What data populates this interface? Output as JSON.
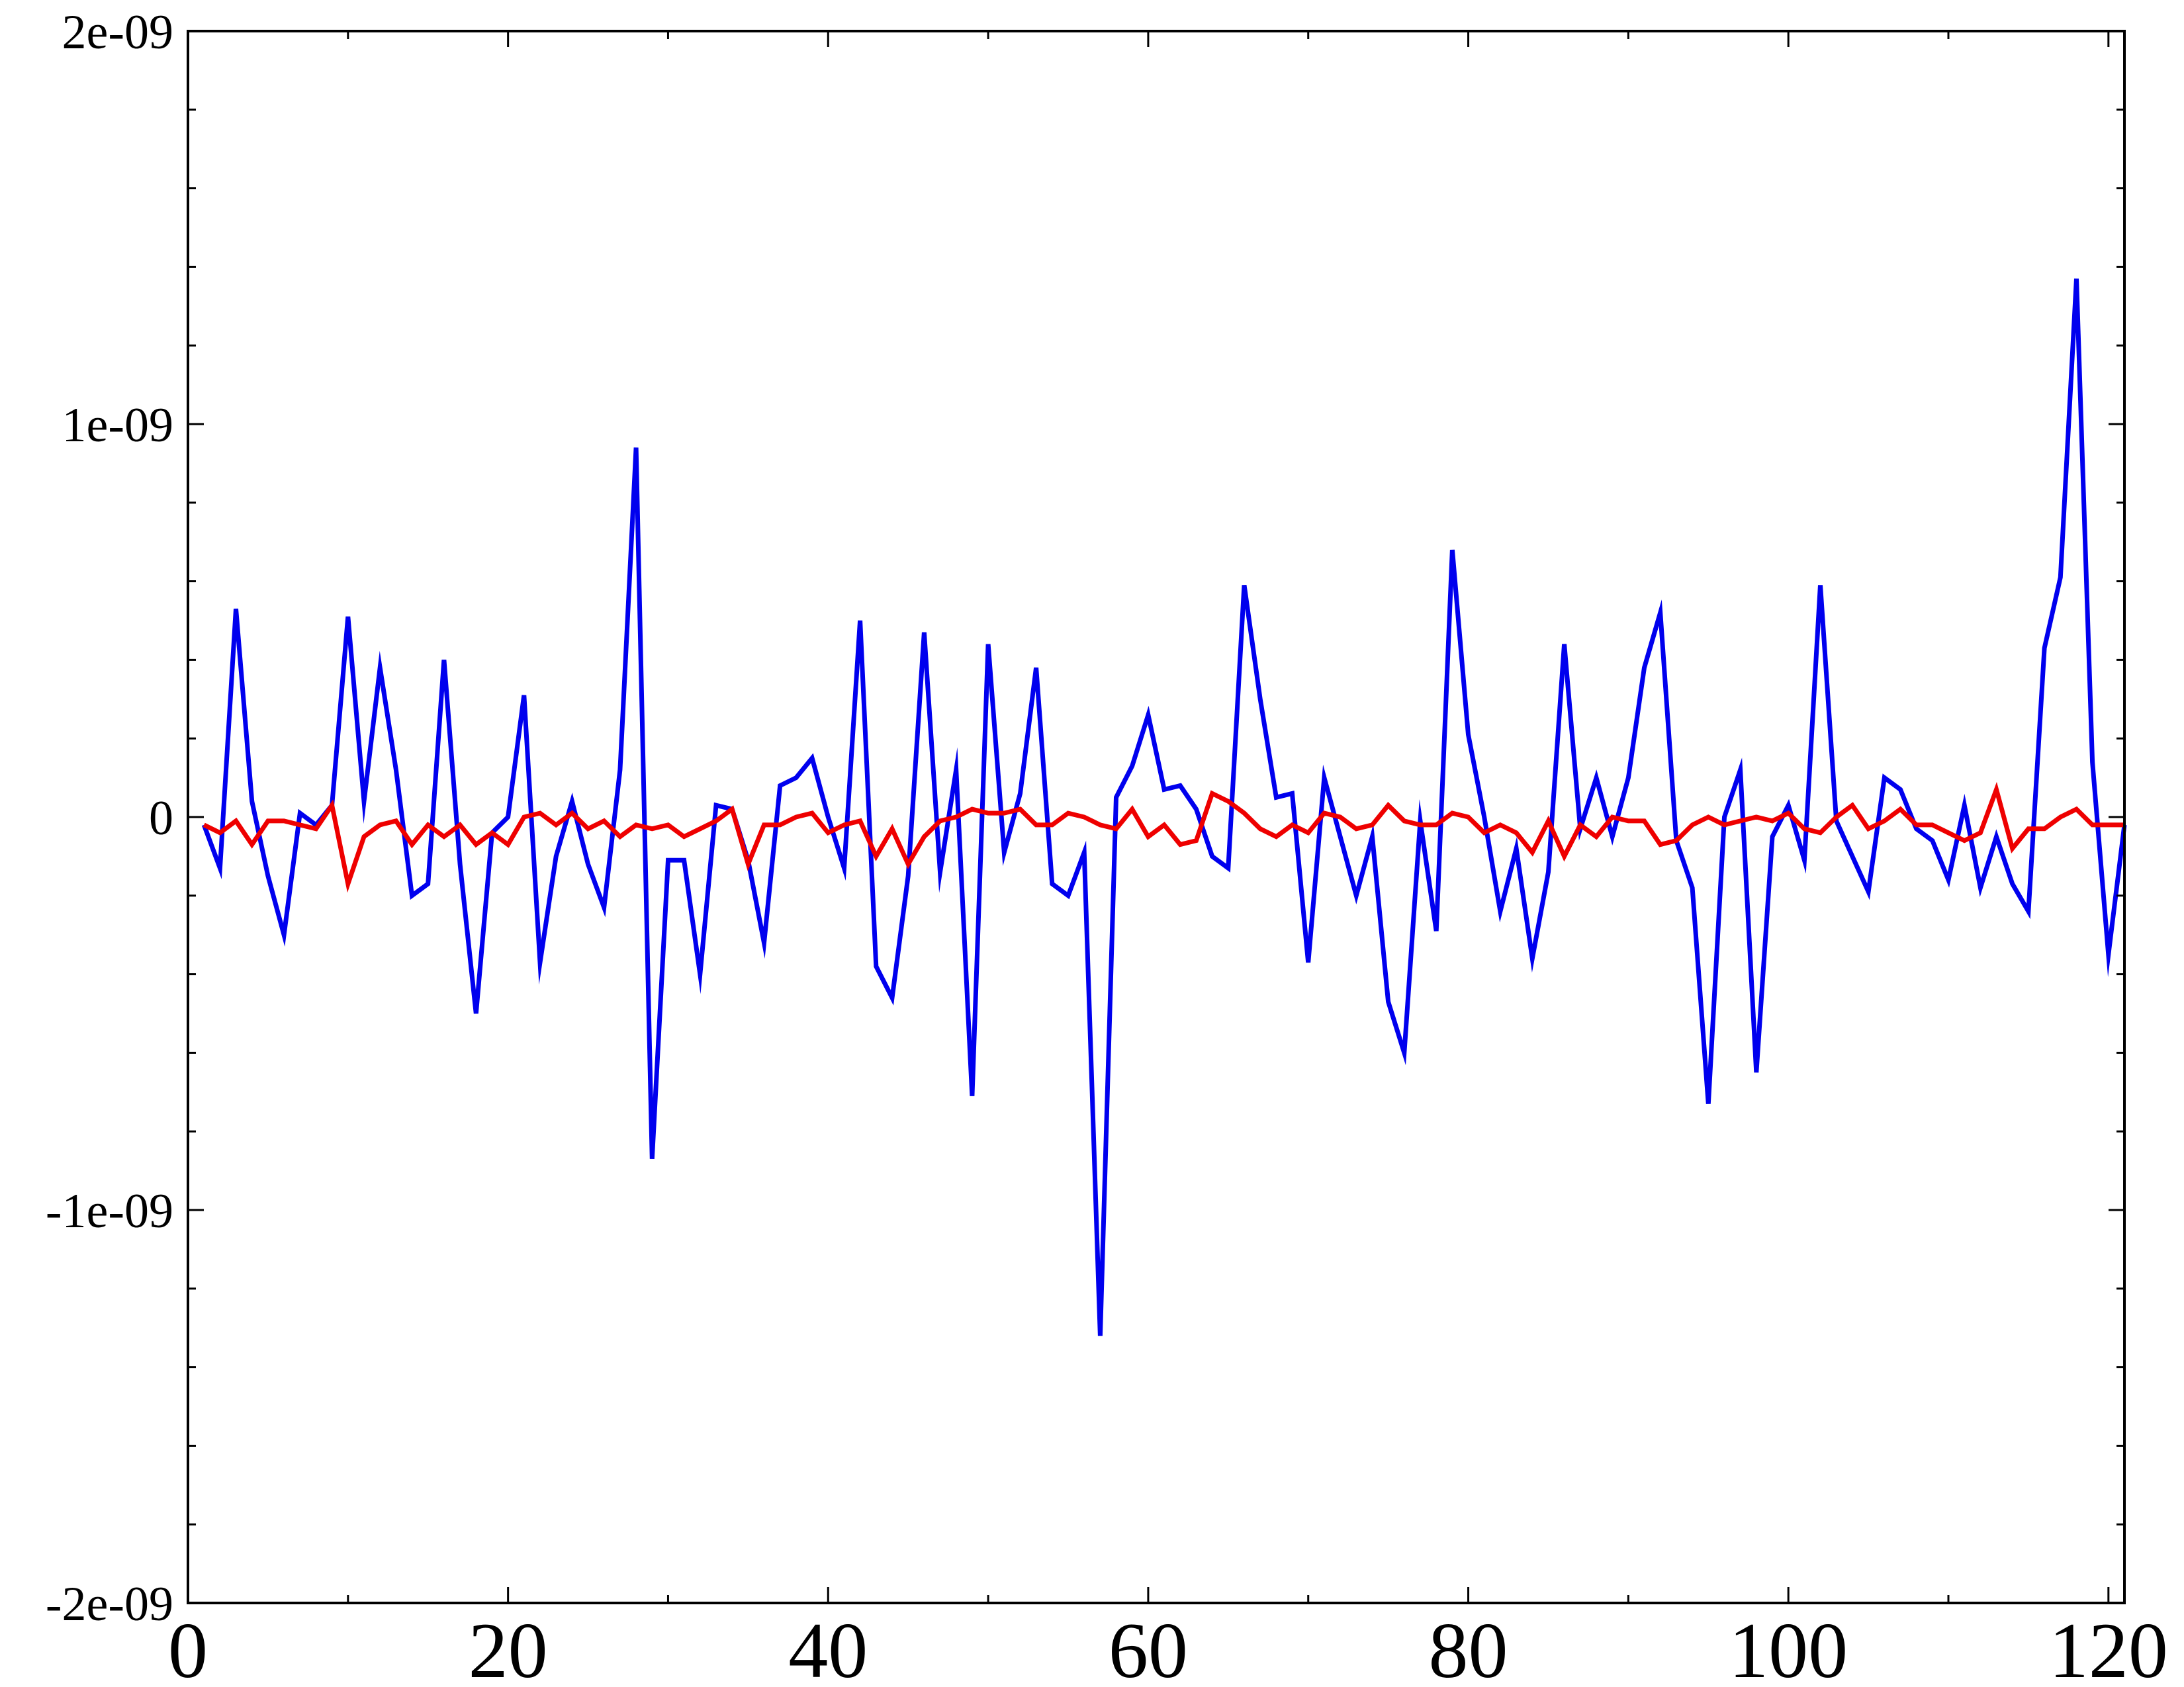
{
  "chart_data": {
    "type": "line",
    "title": "",
    "xlabel": "",
    "ylabel": "",
    "xlim": [
      0,
      121
    ],
    "ylim": [
      -2e-09,
      2e-09
    ],
    "x_ticks": [
      0,
      20,
      40,
      60,
      80,
      100,
      120
    ],
    "x_tick_labels": [
      "0",
      "20",
      "40",
      "60",
      "80",
      "100",
      "120"
    ],
    "x_minor_step": 10,
    "y_ticks": [
      -2e-09,
      -1e-09,
      0,
      1e-09,
      2e-09
    ],
    "y_tick_labels": [
      "-2e-09",
      "-1e-09",
      "0",
      "1e-09",
      "2e-09"
    ],
    "y_minor_step": 2e-10,
    "grid": false,
    "legend": "none",
    "series": [
      {
        "color": "#0000ee",
        "x": [
          1,
          2,
          3,
          4,
          5,
          6,
          7,
          8,
          9,
          10,
          11,
          12,
          13,
          14,
          15,
          16,
          17,
          18,
          19,
          20,
          21,
          22,
          23,
          24,
          25,
          26,
          27,
          28,
          29,
          30,
          31,
          32,
          33,
          34,
          35,
          36,
          37,
          38,
          39,
          40,
          41,
          42,
          43,
          44,
          45,
          46,
          47,
          48,
          49,
          50,
          51,
          52,
          53,
          54,
          55,
          56,
          57,
          58,
          59,
          60,
          61,
          62,
          63,
          64,
          65,
          66,
          67,
          68,
          69,
          70,
          71,
          72,
          73,
          74,
          75,
          76,
          77,
          78,
          79,
          80,
          81,
          82,
          83,
          84,
          85,
          86,
          87,
          88,
          89,
          90,
          91,
          92,
          93,
          94,
          95,
          96,
          97,
          98,
          99,
          100,
          101,
          102,
          103,
          104,
          105,
          106,
          107,
          108,
          109,
          110,
          111,
          112,
          113,
          114,
          115,
          116,
          117,
          118,
          119,
          120,
          121
        ],
        "values": [
          -2e-11,
          -1.3e-10,
          5.3e-10,
          4e-11,
          -1.5e-10,
          -3e-10,
          1e-11,
          -2e-11,
          3e-11,
          5.1e-10,
          4e-11,
          3.8e-10,
          1.2e-10,
          -2e-10,
          -1.7e-10,
          4e-10,
          -1.2e-10,
          -5e-10,
          -4e-11,
          0.0,
          3.1e-10,
          -3.7e-10,
          -1e-10,
          4e-11,
          -1.2e-10,
          -2.3e-10,
          1.2e-10,
          9.4e-10,
          -8.7e-10,
          -1.1e-10,
          -1.1e-10,
          -4e-10,
          3e-11,
          2e-11,
          -1.1e-10,
          -3.2e-10,
          8e-11,
          1e-10,
          1.5e-10,
          0.0,
          -1.3e-10,
          5e-10,
          -3.8e-10,
          -4.6e-10,
          -1.5e-10,
          4.7e-10,
          -1.4e-10,
          1.2e-10,
          -7.1e-10,
          4.4e-10,
          -9e-11,
          6e-11,
          3.8e-10,
          -1.7e-10,
          -2e-10,
          -9e-11,
          -1.32e-09,
          5e-11,
          1.3e-10,
          2.6e-10,
          7e-11,
          8e-11,
          2e-11,
          -1e-10,
          -1.3e-10,
          5.9e-10,
          3e-10,
          5e-11,
          6e-11,
          -3.7e-10,
          1e-10,
          -5e-11,
          -2e-10,
          -5e-11,
          -4.7e-10,
          -6e-10,
          -1e-11,
          -2.9e-10,
          6.8e-10,
          2.1e-10,
          0.0,
          -2.4e-10,
          -8e-11,
          -3.6e-10,
          -1.4e-10,
          4.4e-10,
          -3e-11,
          1e-10,
          -5e-11,
          1e-10,
          3.8e-10,
          5.2e-10,
          -6e-11,
          -1.8e-10,
          -7.3e-10,
          0.0,
          1.2e-10,
          -6.5e-10,
          -5e-11,
          3e-11,
          -1.1e-10,
          5.9e-10,
          -1e-11,
          -1e-10,
          -1.9e-10,
          1e-10,
          7e-11,
          -3e-11,
          -6e-11,
          -1.6e-10,
          3e-11,
          -1.8e-10,
          -5e-11,
          -1.7e-10,
          -2.4e-10,
          4.3e-10,
          6.1e-10,
          1.37e-09,
          1.4e-10,
          -3.5e-10,
          -2e-11
        ]
      },
      {
        "color": "#ee0000",
        "x": [
          1,
          2,
          3,
          4,
          5,
          6,
          7,
          8,
          9,
          10,
          11,
          12,
          13,
          14,
          15,
          16,
          17,
          18,
          19,
          20,
          21,
          22,
          23,
          24,
          25,
          26,
          27,
          28,
          29,
          30,
          31,
          32,
          33,
          34,
          35,
          36,
          37,
          38,
          39,
          40,
          41,
          42,
          43,
          44,
          45,
          46,
          47,
          48,
          49,
          50,
          51,
          52,
          53,
          54,
          55,
          56,
          57,
          58,
          59,
          60,
          61,
          62,
          63,
          64,
          65,
          66,
          67,
          68,
          69,
          70,
          71,
          72,
          73,
          74,
          75,
          76,
          77,
          78,
          79,
          80,
          81,
          82,
          83,
          84,
          85,
          86,
          87,
          88,
          89,
          90,
          91,
          92,
          93,
          94,
          95,
          96,
          97,
          98,
          99,
          100,
          101,
          102,
          103,
          104,
          105,
          106,
          107,
          108,
          109,
          110,
          111,
          112,
          113,
          114,
          115,
          116,
          117,
          118,
          119,
          120,
          121
        ],
        "values": [
          -2e-11,
          -4e-11,
          -1e-11,
          -7e-11,
          -1e-11,
          -1e-11,
          -2e-11,
          -3e-11,
          3e-11,
          -1.7e-10,
          -5e-11,
          -2e-11,
          -1e-11,
          -7e-11,
          -2e-11,
          -5e-11,
          -2e-11,
          -7e-11,
          -4e-11,
          -7e-11,
          0.0,
          1e-11,
          -2e-11,
          1e-11,
          -3e-11,
          -1e-11,
          -5e-11,
          -2e-11,
          -3e-11,
          -2e-11,
          -5e-11,
          -3e-11,
          -1e-11,
          2e-11,
          -1.2e-10,
          -2e-11,
          -2e-11,
          0.0,
          1e-11,
          -4e-11,
          -2e-11,
          -1e-11,
          -1e-10,
          -3e-11,
          -1.2e-10,
          -5e-11,
          -1e-11,
          0.0,
          2e-11,
          1e-11,
          1e-11,
          2e-11,
          -2e-11,
          -2e-11,
          1e-11,
          0.0,
          -2e-11,
          -3e-11,
          2e-11,
          -5e-11,
          -2e-11,
          -7e-11,
          -6e-11,
          6e-11,
          4e-11,
          1e-11,
          -3e-11,
          -5e-11,
          -2e-11,
          -4e-11,
          1e-11,
          0.0,
          -3e-11,
          -2e-11,
          3e-11,
          -1e-11,
          -2e-11,
          -2e-11,
          1e-11,
          0.0,
          -4e-11,
          -2e-11,
          -4e-11,
          -9e-11,
          -1e-11,
          -1e-10,
          -2e-11,
          -5e-11,
          0.0,
          -1e-11,
          -1e-11,
          -7e-11,
          -6e-11,
          -2e-11,
          0.0,
          -2e-11,
          -1e-11,
          0.0,
          -1e-11,
          1e-11,
          -3e-11,
          -4e-11,
          0.0,
          3e-11,
          -3e-11,
          -1e-11,
          2e-11,
          -2e-11,
          -2e-11,
          -4e-11,
          -6e-11,
          -4e-11,
          7e-11,
          -8e-11,
          -3e-11,
          -3e-11,
          0.0,
          2e-11,
          -2e-11,
          -2e-11,
          -2e-11
        ]
      }
    ]
  }
}
